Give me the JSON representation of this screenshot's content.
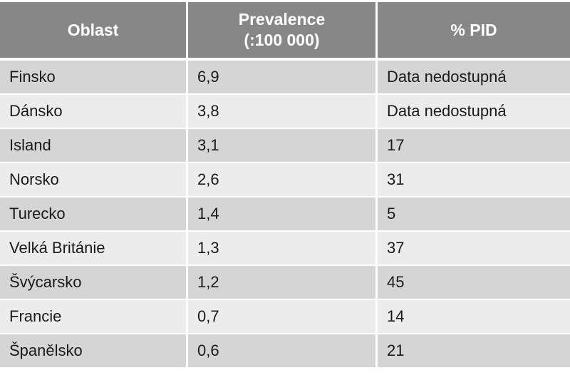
{
  "headers": [
    "Oblast",
    [
      "Prevalence",
      "(:100 000)"
    ],
    "% PID"
  ],
  "rows": [
    [
      "Finsko",
      "6,9",
      "Data nedostupná"
    ],
    [
      "Dánsko",
      "3,8",
      "Data nedostupná"
    ],
    [
      "Island",
      "3,1",
      "17"
    ],
    [
      "Norsko",
      "2,6",
      "31"
    ],
    [
      "Turecko",
      "1,4",
      "5"
    ],
    [
      "Velká Británie",
      "1,3",
      "37"
    ],
    [
      "Švýcarsko",
      "1,2",
      "45"
    ],
    [
      "Francie",
      "0,7",
      "14"
    ],
    [
      "Španělsko",
      "0,6",
      "21"
    ]
  ],
  "colors": {
    "header_bg": "#878787",
    "row_odd": "#d5d5d5",
    "row_even": "#ececec",
    "text": "#1a1a1a",
    "header_text": "#ffffff"
  }
}
